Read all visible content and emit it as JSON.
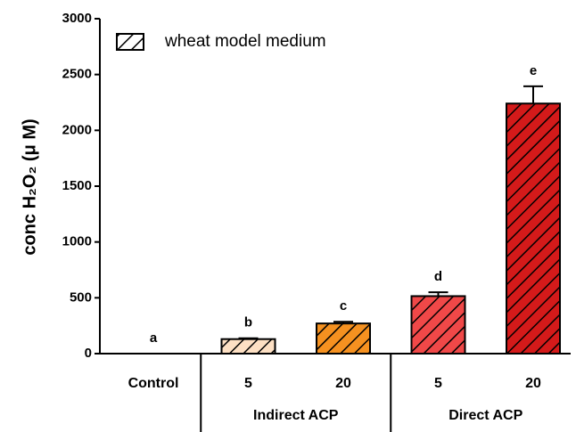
{
  "chart_data": {
    "type": "bar",
    "y_label": "conc H₂O₂ (μ M)",
    "categories": [
      "Control",
      "5",
      "20",
      "5",
      "20"
    ],
    "category_groups": [
      null,
      "Indirect ACP",
      "Indirect ACP",
      "Direct ACP",
      "Direct ACP"
    ],
    "series": [
      {
        "name": "wheat model medium",
        "values": [
          0,
          130,
          270,
          515,
          2240
        ],
        "errors": [
          0,
          8,
          15,
          35,
          155
        ],
        "colors": [
          "#ffffff",
          "#fde0c4",
          "#f59120",
          "#f04848",
          "#d41a1a"
        ],
        "letters": [
          "a",
          "b",
          "c",
          "d",
          "e"
        ]
      }
    ],
    "ylim": [
      0,
      3000
    ],
    "yticks": [
      0,
      500,
      1000,
      1500,
      2000,
      2500,
      3000
    ],
    "hatch": true
  }
}
